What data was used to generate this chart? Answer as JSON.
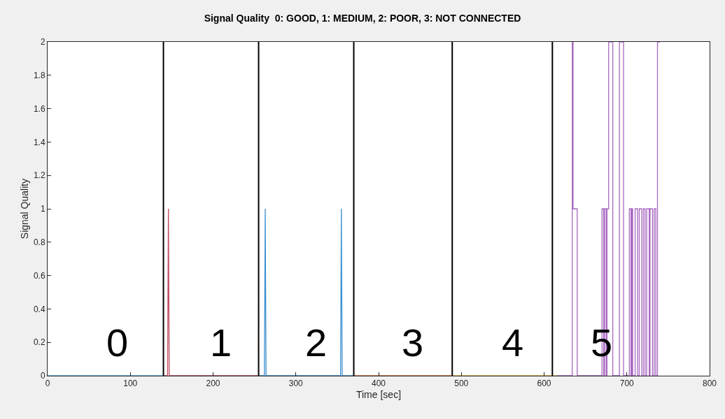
{
  "chart_data": {
    "type": "line",
    "title": "Signal Quality  0: GOOD, 1: MEDIUM, 2: POOR, 3: NOT CONNECTED",
    "xlabel": "Time [sec]",
    "ylabel": "Signal Quality",
    "xlim": [
      0,
      800
    ],
    "xticks": [
      0,
      100,
      200,
      300,
      400,
      500,
      600,
      700,
      800
    ],
    "ylim": [
      0,
      2
    ],
    "yticks": [
      0,
      0.2,
      0.4,
      0.6,
      0.8,
      1,
      1.2,
      1.4,
      1.6,
      1.8,
      2
    ],
    "grid": false,
    "marker": "none",
    "line_style": "solid",
    "series": [
      {
        "color": "#4db3e6",
        "x": [
          0,
          140
        ],
        "values": [
          0,
          0
        ]
      },
      {
        "color": "#c0485e",
        "x": [
          140,
          145,
          146,
          147,
          255
        ],
        "values": [
          0,
          0,
          1,
          0,
          0
        ]
      },
      {
        "color": "#3a8fd0",
        "x": [
          255,
          262,
          263,
          264,
          354,
          355,
          356,
          370
        ],
        "values": [
          0,
          0,
          1,
          0,
          0,
          1,
          0,
          0
        ]
      },
      {
        "color": "#d9683a",
        "x": [
          370,
          490
        ],
        "values": [
          0,
          0
        ]
      },
      {
        "color": "#e0b040",
        "x": [
          490,
          615
        ],
        "values": [
          0,
          0
        ]
      },
      {
        "color": "#a868c0",
        "x": [
          615,
          634,
          634,
          635,
          635,
          640,
          640,
          670,
          670,
          672,
          672,
          673,
          673,
          675,
          675,
          676,
          676,
          678,
          678,
          683,
          683,
          691,
          691,
          696,
          696,
          703,
          703,
          705,
          705,
          706,
          706,
          707,
          707,
          710,
          710,
          713,
          713,
          715,
          715,
          718,
          718,
          720,
          720,
          722,
          722,
          724,
          724,
          727,
          727,
          728,
          728,
          731,
          731,
          733,
          733,
          735,
          735,
          737,
          737,
          740
        ],
        "values": [
          0,
          0,
          2,
          2,
          1,
          1,
          0,
          0,
          1,
          1,
          0,
          0,
          1,
          1,
          0,
          0,
          1,
          1,
          2,
          2,
          0,
          0,
          2,
          2,
          0,
          0,
          1,
          1,
          0,
          0,
          1,
          1,
          0,
          0,
          1,
          1,
          0,
          0,
          1,
          1,
          0,
          0,
          1,
          1,
          0,
          0,
          1,
          1,
          0,
          0,
          1,
          1,
          0,
          0,
          1,
          1,
          0,
          0,
          2,
          2
        ]
      }
    ],
    "ref_lines": [
      {
        "axis": "x",
        "value": 140,
        "color": "#000000"
      },
      {
        "axis": "x",
        "value": 255,
        "color": "#000000"
      },
      {
        "axis": "x",
        "value": 370,
        "color": "#000000"
      },
      {
        "axis": "x",
        "value": 489,
        "color": "#000000"
      },
      {
        "axis": "x",
        "value": 610,
        "color": "#000000"
      }
    ],
    "annotations": [
      "0",
      "1",
      "2",
      "3",
      "4",
      "5"
    ]
  }
}
